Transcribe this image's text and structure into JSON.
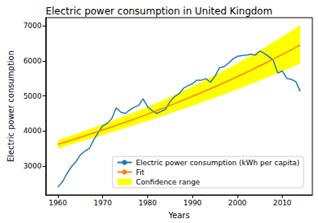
{
  "chart_data": {
    "type": "line",
    "title": "Electric power consumption in United Kingdom",
    "x_label": "Years",
    "y_label": "Electric power consumption",
    "xlim": [
      1957.3,
      2016.7
    ],
    "xticks": [
      1960,
      1970,
      1980,
      1990,
      2000,
      2010
    ],
    "ylim": [
      2180,
      7230
    ],
    "yticks": [
      3000,
      4000,
      5000,
      6000,
      7000
    ],
    "grid": false,
    "legend": "lower right",
    "series": [
      {
        "name": "Electric power consumption (kWh per capita)",
        "type": "line",
        "color": "#1f77b4",
        "x": [
          1960,
          1961,
          1962,
          1963,
          1964,
          1965,
          1966,
          1967,
          1968,
          1969,
          1970,
          1971,
          1972,
          1973,
          1974,
          1975,
          1976,
          1977,
          1978,
          1979,
          1980,
          1981,
          1982,
          1983,
          1984,
          1985,
          1986,
          1987,
          1988,
          1989,
          1990,
          1991,
          1992,
          1993,
          1994,
          1995,
          1996,
          1997,
          1998,
          1999,
          2000,
          2001,
          2002,
          2003,
          2004,
          2005,
          2006,
          2007,
          2008,
          2009,
          2010,
          2011,
          2012,
          2013,
          2014
        ],
        "values": [
          2400,
          2550,
          2780,
          2980,
          3120,
          3320,
          3420,
          3500,
          3750,
          3960,
          4150,
          4220,
          4350,
          4660,
          4540,
          4500,
          4600,
          4680,
          4730,
          4920,
          4690,
          4580,
          4500,
          4560,
          4620,
          4840,
          4980,
          5060,
          5220,
          5290,
          5350,
          5450,
          5450,
          5490,
          5390,
          5560,
          5800,
          5830,
          5930,
          6050,
          6130,
          6150,
          6160,
          6190,
          6160,
          6280,
          6210,
          6120,
          6010,
          5650,
          5710,
          5500,
          5470,
          5410,
          5130
        ]
      },
      {
        "name": "Fit",
        "type": "line",
        "color": "#ff7f0e",
        "x": [
          1960,
          1965,
          1970,
          1975,
          1980,
          1985,
          1990,
          1995,
          2000,
          2005,
          2010,
          2014
        ],
        "values": [
          3620,
          3820,
          4030,
          4250,
          4480,
          4730,
          4990,
          5260,
          5550,
          5860,
          6180,
          6450
        ]
      },
      {
        "name": "Confidence range",
        "type": "band",
        "color": "#ffff00",
        "x": [
          1960,
          1965,
          1970,
          1975,
          1980,
          1985,
          1990,
          1995,
          2000,
          2005,
          2010,
          2014
        ],
        "lower": [
          3500,
          3700,
          3890,
          4090,
          4290,
          4500,
          4720,
          4950,
          5190,
          5440,
          5700,
          5920
        ],
        "upper": [
          3740,
          3960,
          4190,
          4430,
          4690,
          4970,
          5270,
          5590,
          5930,
          6300,
          6690,
          7020
        ]
      }
    ]
  }
}
